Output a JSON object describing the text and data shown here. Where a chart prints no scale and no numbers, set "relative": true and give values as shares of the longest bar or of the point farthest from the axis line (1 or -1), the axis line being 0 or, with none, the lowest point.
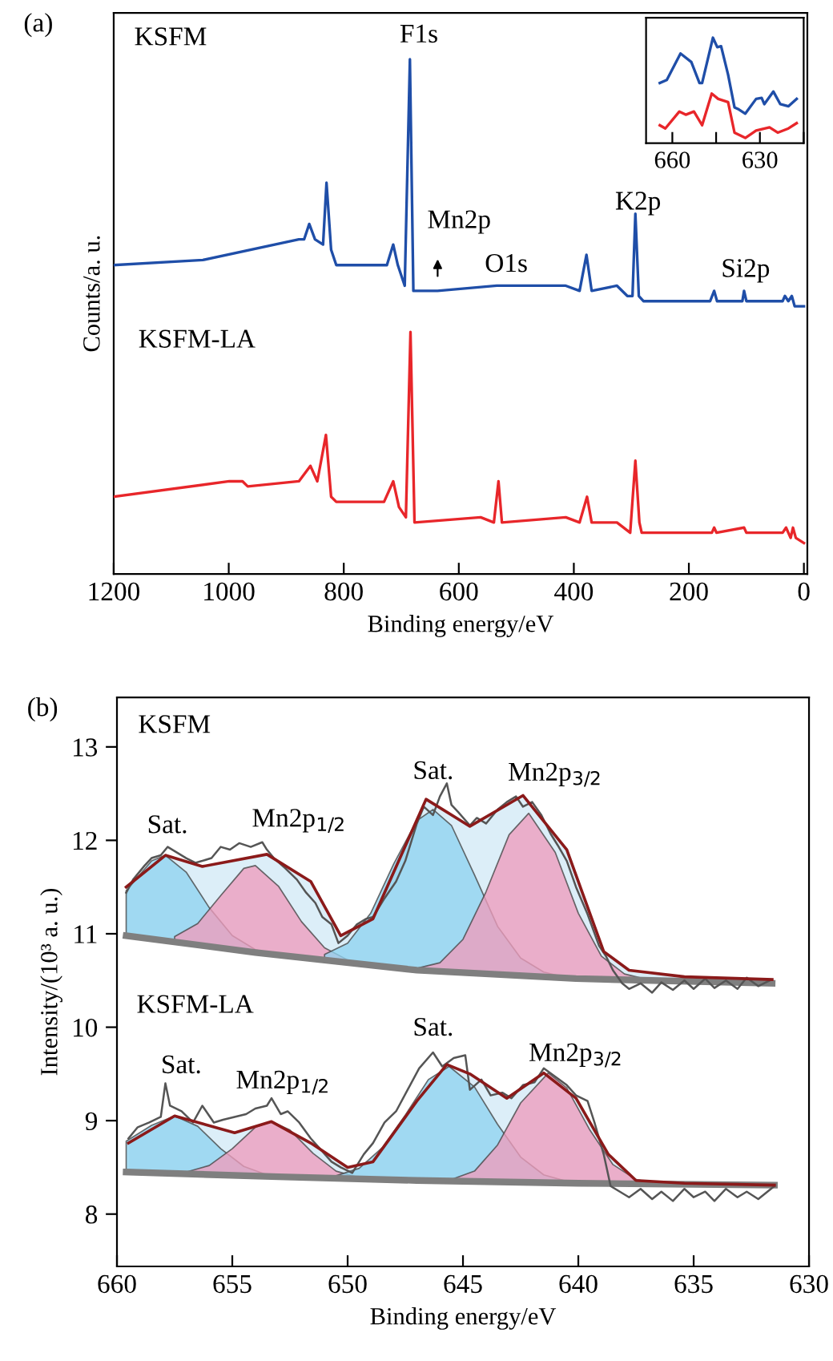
{
  "chart_data": [
    {
      "type": "line",
      "title": "(a)",
      "xlabel": "Binding energy/eV",
      "ylabel": "Counts/a. u.",
      "relative": true,
      "xlim": [
        1200,
        -6
      ],
      "xticks": [
        1200,
        1000,
        800,
        600,
        400,
        200,
        0
      ],
      "series": [
        {
          "color": "#1f4ea8",
          "x": [
            1200,
            1045,
            878,
            869,
            860,
            850,
            836,
            830,
            822,
            813,
            748,
            725,
            714,
            706,
            694,
            685,
            679,
            637,
            534,
            414,
            390,
            378,
            369,
            325,
            307,
            298,
            293,
            287,
            279,
            163,
            156,
            151,
            107,
            104,
            100,
            37,
            33,
            27,
            21,
            16,
            0
          ],
          "values": [
            0.6,
            0.61,
            0.65,
            0.65,
            0.68,
            0.65,
            0.64,
            0.76,
            0.63,
            0.6,
            0.6,
            0.6,
            0.64,
            0.6,
            0.56,
            1.0,
            0.55,
            0.55,
            0.56,
            0.56,
            0.55,
            0.62,
            0.55,
            0.56,
            0.54,
            0.54,
            0.7,
            0.54,
            0.53,
            0.53,
            0.55,
            0.53,
            0.53,
            0.55,
            0.53,
            0.53,
            0.54,
            0.53,
            0.54,
            0.52,
            0.52
          ]
        },
        {
          "color": "#e8262a",
          "x": [
            1200,
            999,
            976,
            967,
            878,
            858,
            846,
            831,
            822,
            813,
            730,
            714,
            704,
            692,
            684,
            677,
            562,
            539,
            531,
            525,
            414,
            390,
            377,
            369,
            325,
            302,
            293,
            286,
            282,
            275,
            160,
            156,
            152,
            104,
            100,
            37,
            31,
            23,
            19,
            14,
            0
          ],
          "values": [
            0.15,
            0.18,
            0.18,
            0.17,
            0.18,
            0.21,
            0.18,
            0.27,
            0.15,
            0.14,
            0.14,
            0.18,
            0.13,
            0.11,
            0.47,
            0.1,
            0.11,
            0.1,
            0.18,
            0.1,
            0.11,
            0.1,
            0.15,
            0.1,
            0.1,
            0.08,
            0.22,
            0.1,
            0.08,
            0.08,
            0.08,
            0.09,
            0.08,
            0.09,
            0.08,
            0.08,
            0.09,
            0.07,
            0.09,
            0.07,
            0.06
          ]
        }
      ],
      "annotations": [
        "KSFM",
        "KSFM-LA",
        "F1s",
        "Mn2p",
        "O1s",
        "K2p",
        "Si2p"
      ]
    },
    {
      "type": "line",
      "relative": true,
      "xlim": [
        669,
        615
      ],
      "xticks": [
        660,
        {
          "value": 645,
          "label": null
        },
        630,
        {
          "value": 615,
          "label": null
        }
      ],
      "series": [
        {
          "color": "#1f4ea8",
          "x": [
            664.3,
            661.9,
            657.2,
            653.5,
            650.7,
            649.8,
            646.1,
            644.6,
            643.3,
            640.9,
            638.7,
            637.2,
            635.0,
            631.3,
            629.4,
            628.5,
            625.4,
            623.0,
            620.2,
            617.4
          ],
          "values": [
            0.57,
            0.6,
            0.85,
            0.77,
            0.57,
            0.57,
            1.0,
            0.91,
            0.92,
            0.65,
            0.34,
            0.32,
            0.28,
            0.42,
            0.43,
            0.37,
            0.49,
            0.37,
            0.35,
            0.42
          ]
        },
        {
          "color": "#e8262a",
          "x": [
            664.3,
            662.4,
            657.6,
            655.4,
            652.6,
            649.8,
            646.5,
            644.3,
            640.9,
            638.7,
            635.0,
            631.3,
            626.7,
            623.9,
            620.2,
            617.4
          ],
          "values": [
            0.17,
            0.14,
            0.3,
            0.27,
            0.3,
            0.17,
            0.47,
            0.42,
            0.39,
            0.1,
            0.05,
            0.12,
            0.15,
            0.1,
            0.14,
            0.19
          ]
        }
      ]
    },
    {
      "type": "line",
      "title": "(b)",
      "xlabel": "Binding energy/eV",
      "ylabel": "Intensity/(10³ a. u.)",
      "xlim": [
        660,
        630
      ],
      "xticks": [
        660,
        655,
        650,
        645,
        640,
        635,
        630
      ],
      "ylim": [
        7.44,
        13.53
      ],
      "yticks": [
        8,
        9,
        10,
        11,
        12,
        13
      ],
      "series": [
        {
          "type": "area",
          "color": "#8fd3f0",
          "x": [
            659.6,
            658.5,
            657.9,
            657.0,
            656.0,
            655.0,
            654.0,
            653.0
          ],
          "values": [
            11.46,
            11.78,
            11.84,
            11.66,
            11.28,
            10.98,
            10.83,
            10.77
          ]
        },
        {
          "type": "area",
          "color": "#ee9cbc",
          "x": [
            657.5,
            656.5,
            655.5,
            654.5,
            654.0,
            653.0,
            652.0,
            651.0,
            650.0
          ],
          "values": [
            10.97,
            11.11,
            11.41,
            11.7,
            11.73,
            11.51,
            11.13,
            10.85,
            10.72
          ]
        },
        {
          "type": "area",
          "color": "#8fd3f0",
          "x": [
            651.0,
            650.0,
            649.0,
            648.0,
            647.0,
            646.3,
            645.5,
            644.5,
            643.5,
            642.5,
            641.5,
            640.5
          ],
          "values": [
            10.78,
            10.9,
            11.22,
            11.75,
            12.21,
            12.33,
            12.16,
            11.63,
            11.08,
            10.74,
            10.59,
            10.53
          ]
        },
        {
          "type": "area",
          "color": "#ee9cbc",
          "x": [
            648.0,
            647.0,
            646.0,
            645.0,
            644.0,
            643.0,
            642.15,
            641.0,
            640.0,
            639.0,
            638.0,
            637.0
          ],
          "values": [
            10.64,
            10.63,
            10.69,
            10.94,
            11.45,
            12.06,
            12.29,
            11.87,
            11.22,
            10.76,
            10.57,
            10.51
          ]
        },
        {
          "color": "#7f7f7f",
          "x": [
            659.6,
            654.0,
            647.0,
            640.1,
            631.6
          ],
          "values": [
            10.98,
            10.8,
            10.61,
            10.52,
            10.47
          ]
        },
        {
          "color": "#555555",
          "x": [
            659.6,
            659.3,
            658.8,
            658.5,
            658.1,
            657.8,
            657.4,
            657.0,
            656.6,
            656.3,
            655.9,
            655.5,
            655.1,
            654.7,
            654.2,
            653.7,
            653.5,
            653.2,
            652.7,
            652.2,
            651.8,
            651.4,
            651.1,
            650.7,
            650.4,
            650.0,
            649.6,
            649.2,
            648.9,
            648.4,
            647.9,
            647.5,
            647.0,
            646.7,
            646.3,
            646.0,
            645.7,
            645.5,
            645.2,
            644.7,
            644.4,
            644.0,
            643.5,
            643.1,
            642.7,
            642.4,
            642.0,
            641.6,
            641.2,
            640.9,
            640.5,
            640.1,
            639.6,
            639.1,
            638.8,
            638.5,
            638.1,
            637.8,
            637.3,
            636.8,
            636.4,
            635.9,
            635.4,
            635.0,
            634.5,
            634.1,
            633.6,
            633.1,
            632.7,
            632.2,
            631.7
          ],
          "values": [
            11.44,
            11.58,
            11.73,
            11.81,
            11.84,
            11.93,
            11.87,
            11.81,
            11.76,
            11.78,
            11.81,
            11.93,
            11.9,
            11.97,
            11.93,
            11.98,
            11.9,
            11.81,
            11.7,
            11.58,
            11.44,
            11.33,
            11.18,
            11.1,
            10.9,
            10.98,
            11.1,
            11.16,
            11.18,
            11.38,
            11.56,
            11.78,
            12.18,
            12.36,
            12.27,
            12.47,
            12.61,
            12.38,
            12.3,
            12.16,
            12.24,
            12.18,
            12.33,
            12.41,
            12.47,
            12.36,
            12.41,
            12.27,
            12.07,
            11.95,
            11.78,
            11.5,
            11.21,
            10.87,
            10.76,
            10.61,
            10.47,
            10.41,
            10.47,
            10.37,
            10.48,
            10.4,
            10.5,
            10.41,
            10.52,
            10.42,
            10.5,
            10.41,
            10.53,
            10.44,
            10.5
          ]
        },
        {
          "type": "area",
          "color": "#8b1a1a",
          "x": [
            659.6,
            657.9,
            656.3,
            653.5,
            651.6,
            650.3,
            648.9,
            646.6,
            644.7,
            642.4,
            640.5,
            638.9,
            637.8,
            635.4,
            631.6
          ],
          "values": [
            11.5,
            11.84,
            11.72,
            11.85,
            11.56,
            10.98,
            11.16,
            12.44,
            12.15,
            12.48,
            11.9,
            10.81,
            10.61,
            10.54,
            10.51
          ]
        },
        {
          "type": "area",
          "color": "#8fd3f0",
          "x": [
            659.6,
            658.5,
            657.5,
            656.5,
            655.5,
            654.5,
            653.5,
            652.5
          ],
          "values": [
            8.78,
            8.95,
            9.05,
            8.94,
            8.7,
            8.51,
            8.42,
            8.4
          ]
        },
        {
          "type": "area",
          "color": "#ee9cbc",
          "x": [
            657.0,
            656.0,
            655.0,
            654.0,
            653.3,
            652.5,
            651.5,
            650.5,
            649.5
          ],
          "values": [
            8.45,
            8.52,
            8.7,
            8.93,
            8.99,
            8.9,
            8.65,
            8.46,
            8.39
          ]
        },
        {
          "type": "area",
          "color": "#8fd3f0",
          "x": [
            650.5,
            649.5,
            648.5,
            647.5,
            646.5,
            645.6,
            644.5,
            643.5,
            642.5,
            641.5,
            640.5,
            639.5
          ],
          "values": [
            8.41,
            8.49,
            8.71,
            9.06,
            9.44,
            9.58,
            9.36,
            8.96,
            8.61,
            8.42,
            8.35,
            8.33
          ]
        },
        {
          "type": "area",
          "color": "#ee9cbc",
          "x": [
            646.5,
            645.5,
            644.5,
            643.5,
            642.5,
            641.3,
            640.5,
            639.5,
            638.5,
            637.5,
            636.5
          ],
          "values": [
            8.35,
            8.37,
            8.46,
            8.74,
            9.19,
            9.51,
            9.35,
            8.9,
            8.53,
            8.37,
            8.32
          ]
        },
        {
          "color": "#7f7f7f",
          "x": [
            659.6,
            653.0,
            647.0,
            640.0,
            631.5
          ],
          "values": [
            8.45,
            8.4,
            8.36,
            8.33,
            8.31
          ]
        },
        {
          "color": "#555555",
          "x": [
            659.5,
            659.1,
            658.6,
            658.1,
            657.9,
            657.7,
            657.2,
            656.7,
            656.3,
            655.8,
            655.4,
            654.9,
            654.4,
            654.0,
            653.5,
            653.3,
            652.9,
            652.6,
            652.1,
            651.6,
            651.2,
            650.7,
            650.3,
            649.8,
            649.3,
            648.9,
            648.4,
            647.9,
            647.4,
            646.9,
            646.3,
            645.9,
            645.4,
            644.9,
            644.7,
            644.2,
            643.8,
            643.3,
            642.9,
            642.4,
            641.9,
            641.5,
            641.0,
            640.5,
            640.1,
            639.6,
            639.3,
            638.9,
            638.6,
            638.2,
            637.8,
            637.3,
            636.8,
            636.4,
            635.9,
            635.4,
            635.0,
            634.5,
            634.1,
            633.6,
            633.1,
            632.7,
            632.2,
            631.5
          ],
          "values": [
            8.81,
            8.93,
            8.98,
            9.04,
            9.4,
            9.16,
            9.1,
            8.98,
            9.16,
            8.98,
            9.01,
            9.04,
            9.07,
            9.13,
            9.16,
            9.24,
            9.07,
            9.1,
            8.98,
            8.81,
            8.7,
            8.56,
            8.5,
            8.44,
            8.64,
            8.76,
            8.98,
            9.1,
            9.33,
            9.56,
            9.73,
            9.58,
            9.67,
            9.7,
            9.33,
            9.44,
            9.27,
            9.3,
            9.24,
            9.38,
            9.41,
            9.56,
            9.47,
            9.38,
            9.27,
            9.21,
            8.98,
            8.64,
            8.3,
            8.24,
            8.18,
            8.27,
            8.16,
            8.24,
            8.14,
            8.27,
            8.18,
            8.24,
            8.14,
            8.27,
            8.18,
            8.24,
            8.16,
            8.3
          ]
        },
        {
          "type": "area",
          "color": "#8b1a1a",
          "x": [
            659.5,
            657.5,
            654.9,
            653.3,
            651.6,
            650.0,
            648.9,
            647.0,
            645.7,
            644.7,
            643.1,
            641.5,
            640.1,
            638.7,
            637.5,
            635.4,
            631.5
          ],
          "values": [
            8.76,
            9.05,
            8.87,
            8.99,
            8.76,
            8.5,
            8.56,
            9.21,
            9.6,
            9.5,
            9.24,
            9.51,
            9.24,
            8.64,
            8.36,
            8.33,
            8.31
          ]
        }
      ],
      "annotations": [
        "KSFM",
        "Sat.",
        "Mn2p$_{1/2}$",
        "Sat.",
        "Mn2p$_{3/2}$",
        "KSFM-LA",
        "Sat.",
        "Mn2p$_{1/2}$",
        "Sat.",
        "Mn2p$_{3/2}$"
      ]
    }
  ]
}
